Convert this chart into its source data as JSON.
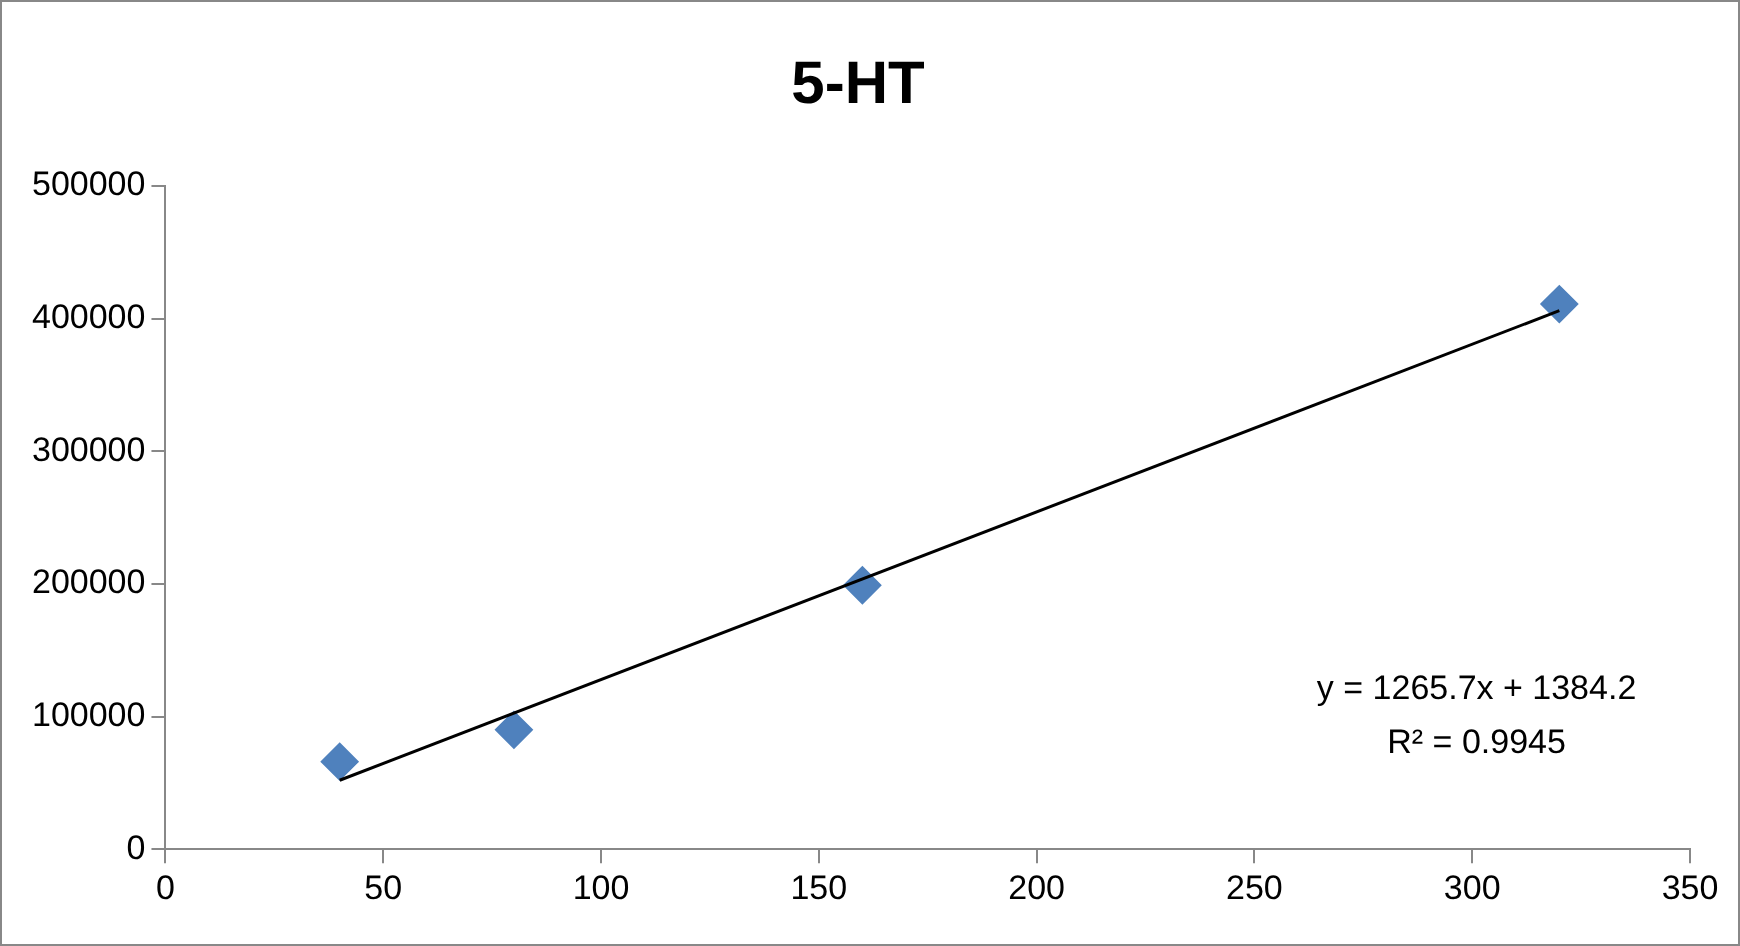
{
  "chart_data": {
    "type": "scatter",
    "title": "5-HT",
    "series": [
      {
        "type": "scatter",
        "color": "#4f81bd",
        "marker": "diamond",
        "x": [
          40,
          80,
          160,
          320
        ],
        "values": [
          66000,
          90000,
          199000,
          411000
        ]
      },
      {
        "type": "line",
        "color": "#000000",
        "marker": "none",
        "x": [
          40,
          320
        ],
        "values": [
          52000,
          406000
        ]
      }
    ],
    "xlim": [
      0,
      350
    ],
    "xticks": [
      0,
      50,
      100,
      150,
      200,
      250,
      300,
      350
    ],
    "ylim": [
      0,
      500000
    ],
    "yticks": [
      0,
      100000,
      200000,
      300000,
      400000,
      500000
    ],
    "grid": false,
    "legend": false,
    "line_style": "solid",
    "annotations": [
      "y = 1265.7x + 1384.2",
      "R² = 0.9945"
    ]
  }
}
